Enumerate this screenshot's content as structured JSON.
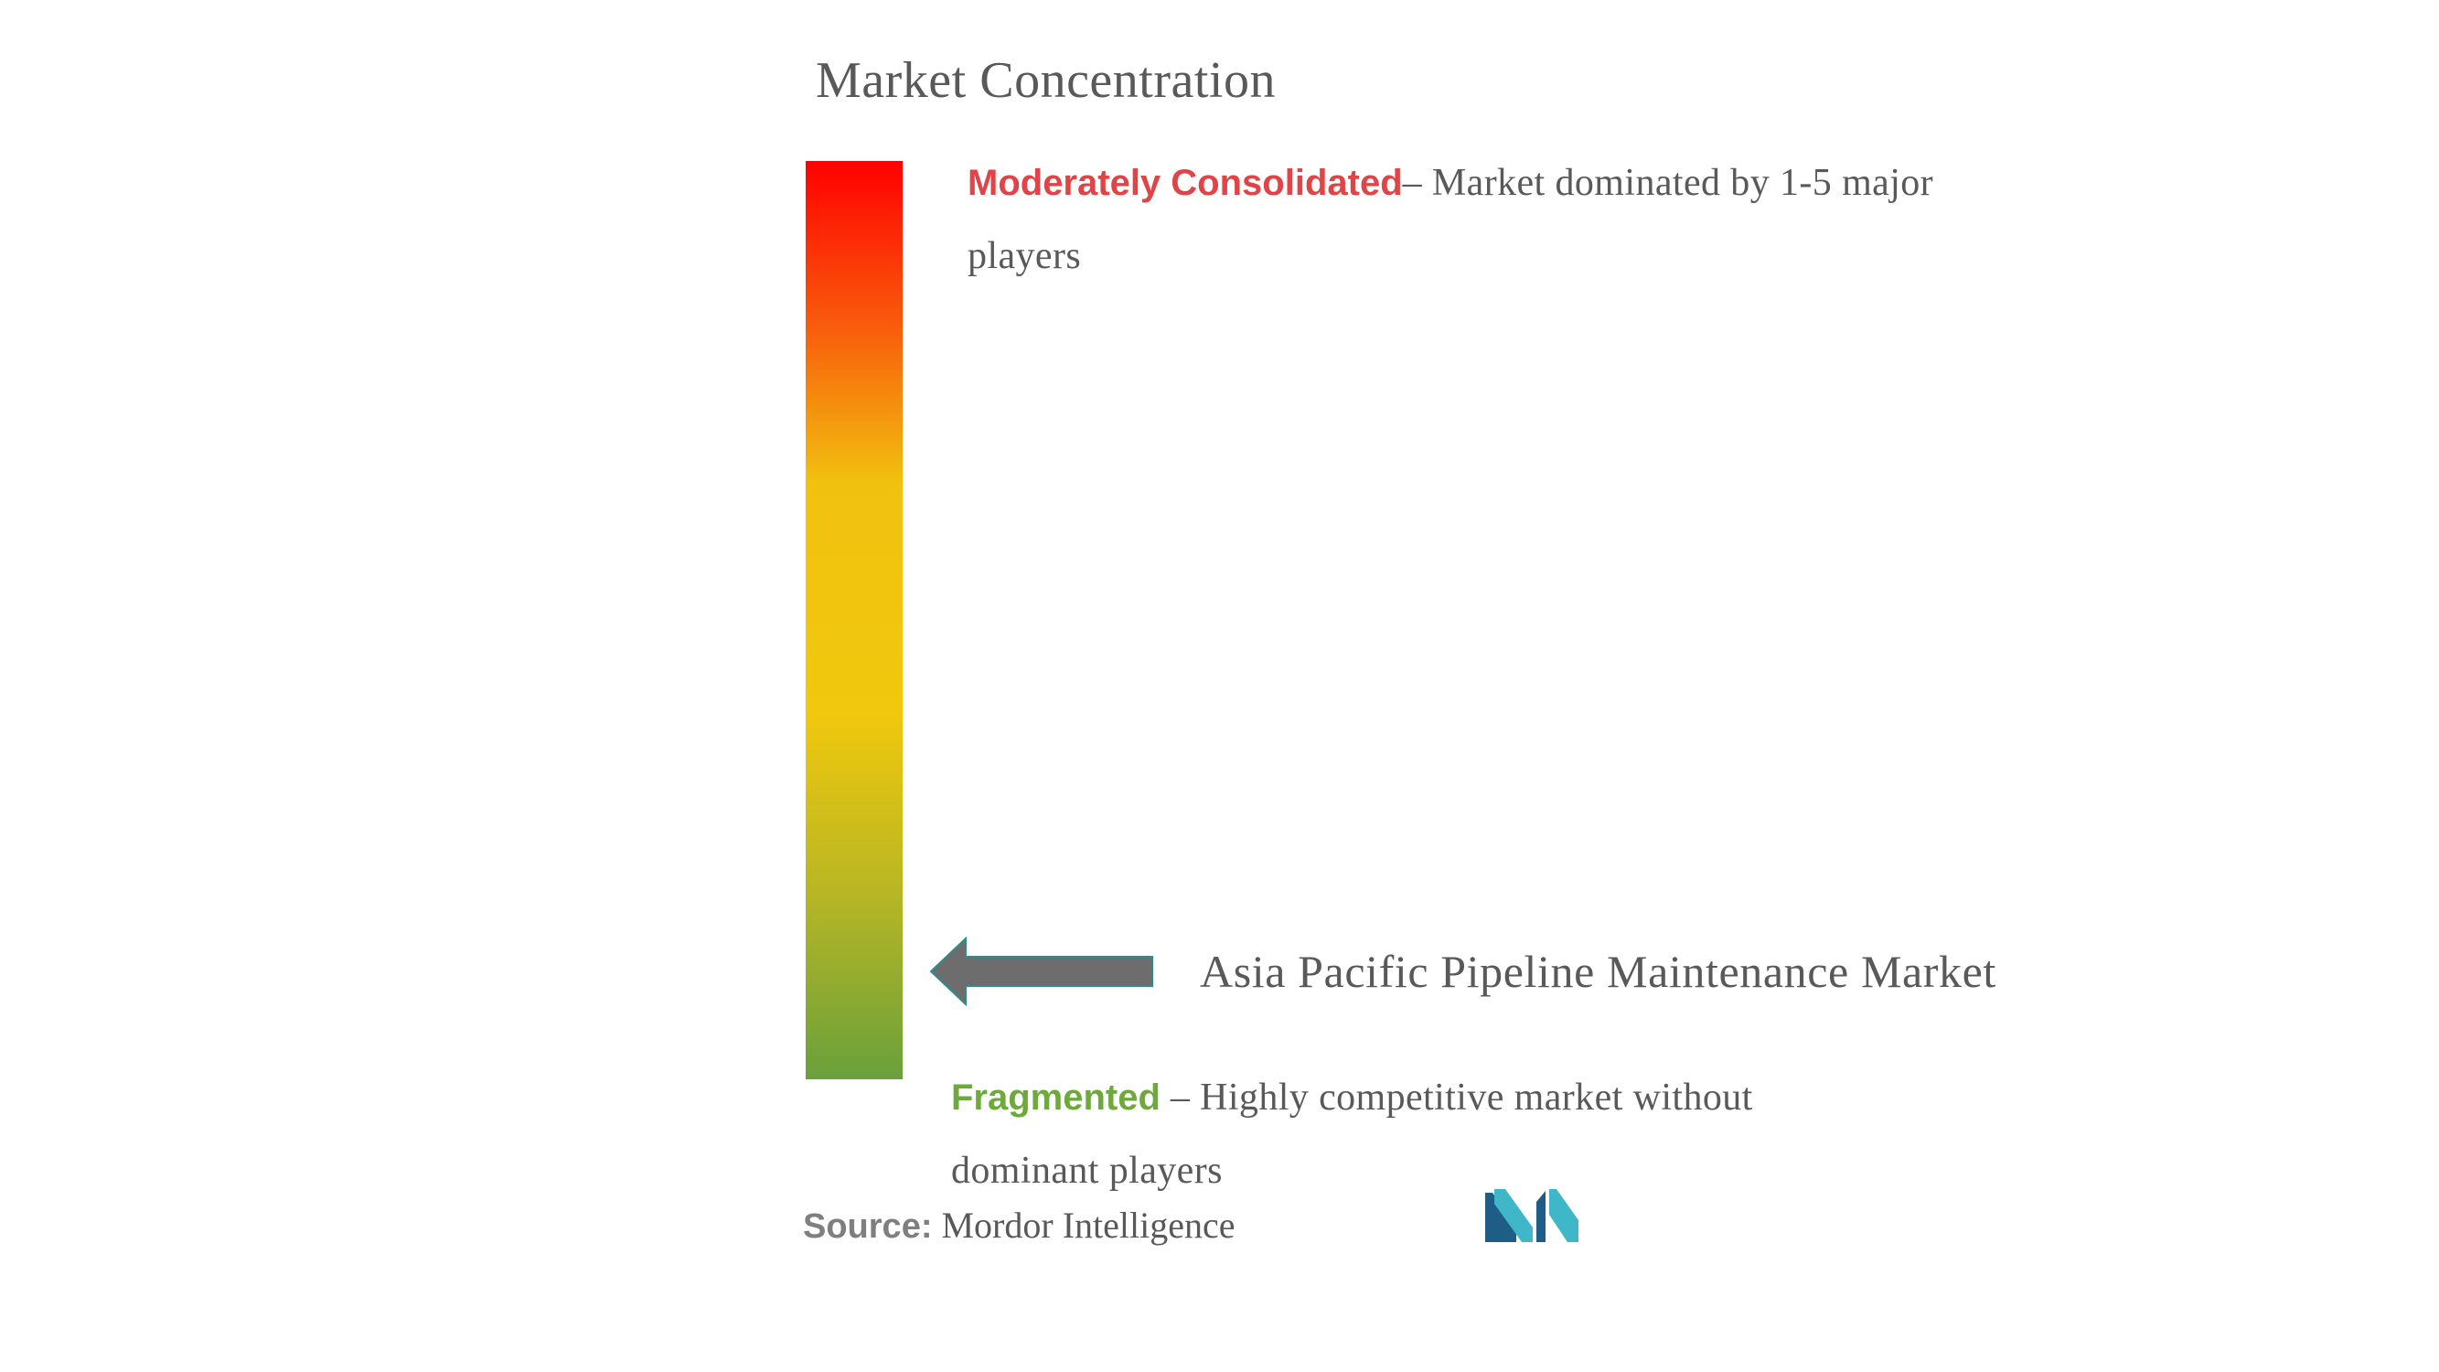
{
  "title": "Market Concentration",
  "top": {
    "label": "Moderately Consolidated",
    "description": "– Market dominated by 1-5 major players"
  },
  "bottom": {
    "label": "Fragmented",
    "description": " – Highly competitive market without dominant players"
  },
  "indicator": {
    "market": "Asia Pacific Pipeline Maintenance Market",
    "level": 0.07
  },
  "source": {
    "label": "Source:",
    "text": " Mordor Intelligence"
  },
  "colors": {
    "consolidated": "#e04446",
    "fragmented": "#6da93b",
    "arrow": "#6d6d6d",
    "text": "#595959",
    "logo_dark": "#1d5d86",
    "logo_light": "#3fb7c9"
  },
  "icons": {
    "arrow": "left-arrow-icon",
    "logo": "mordor-intelligence-logo"
  }
}
